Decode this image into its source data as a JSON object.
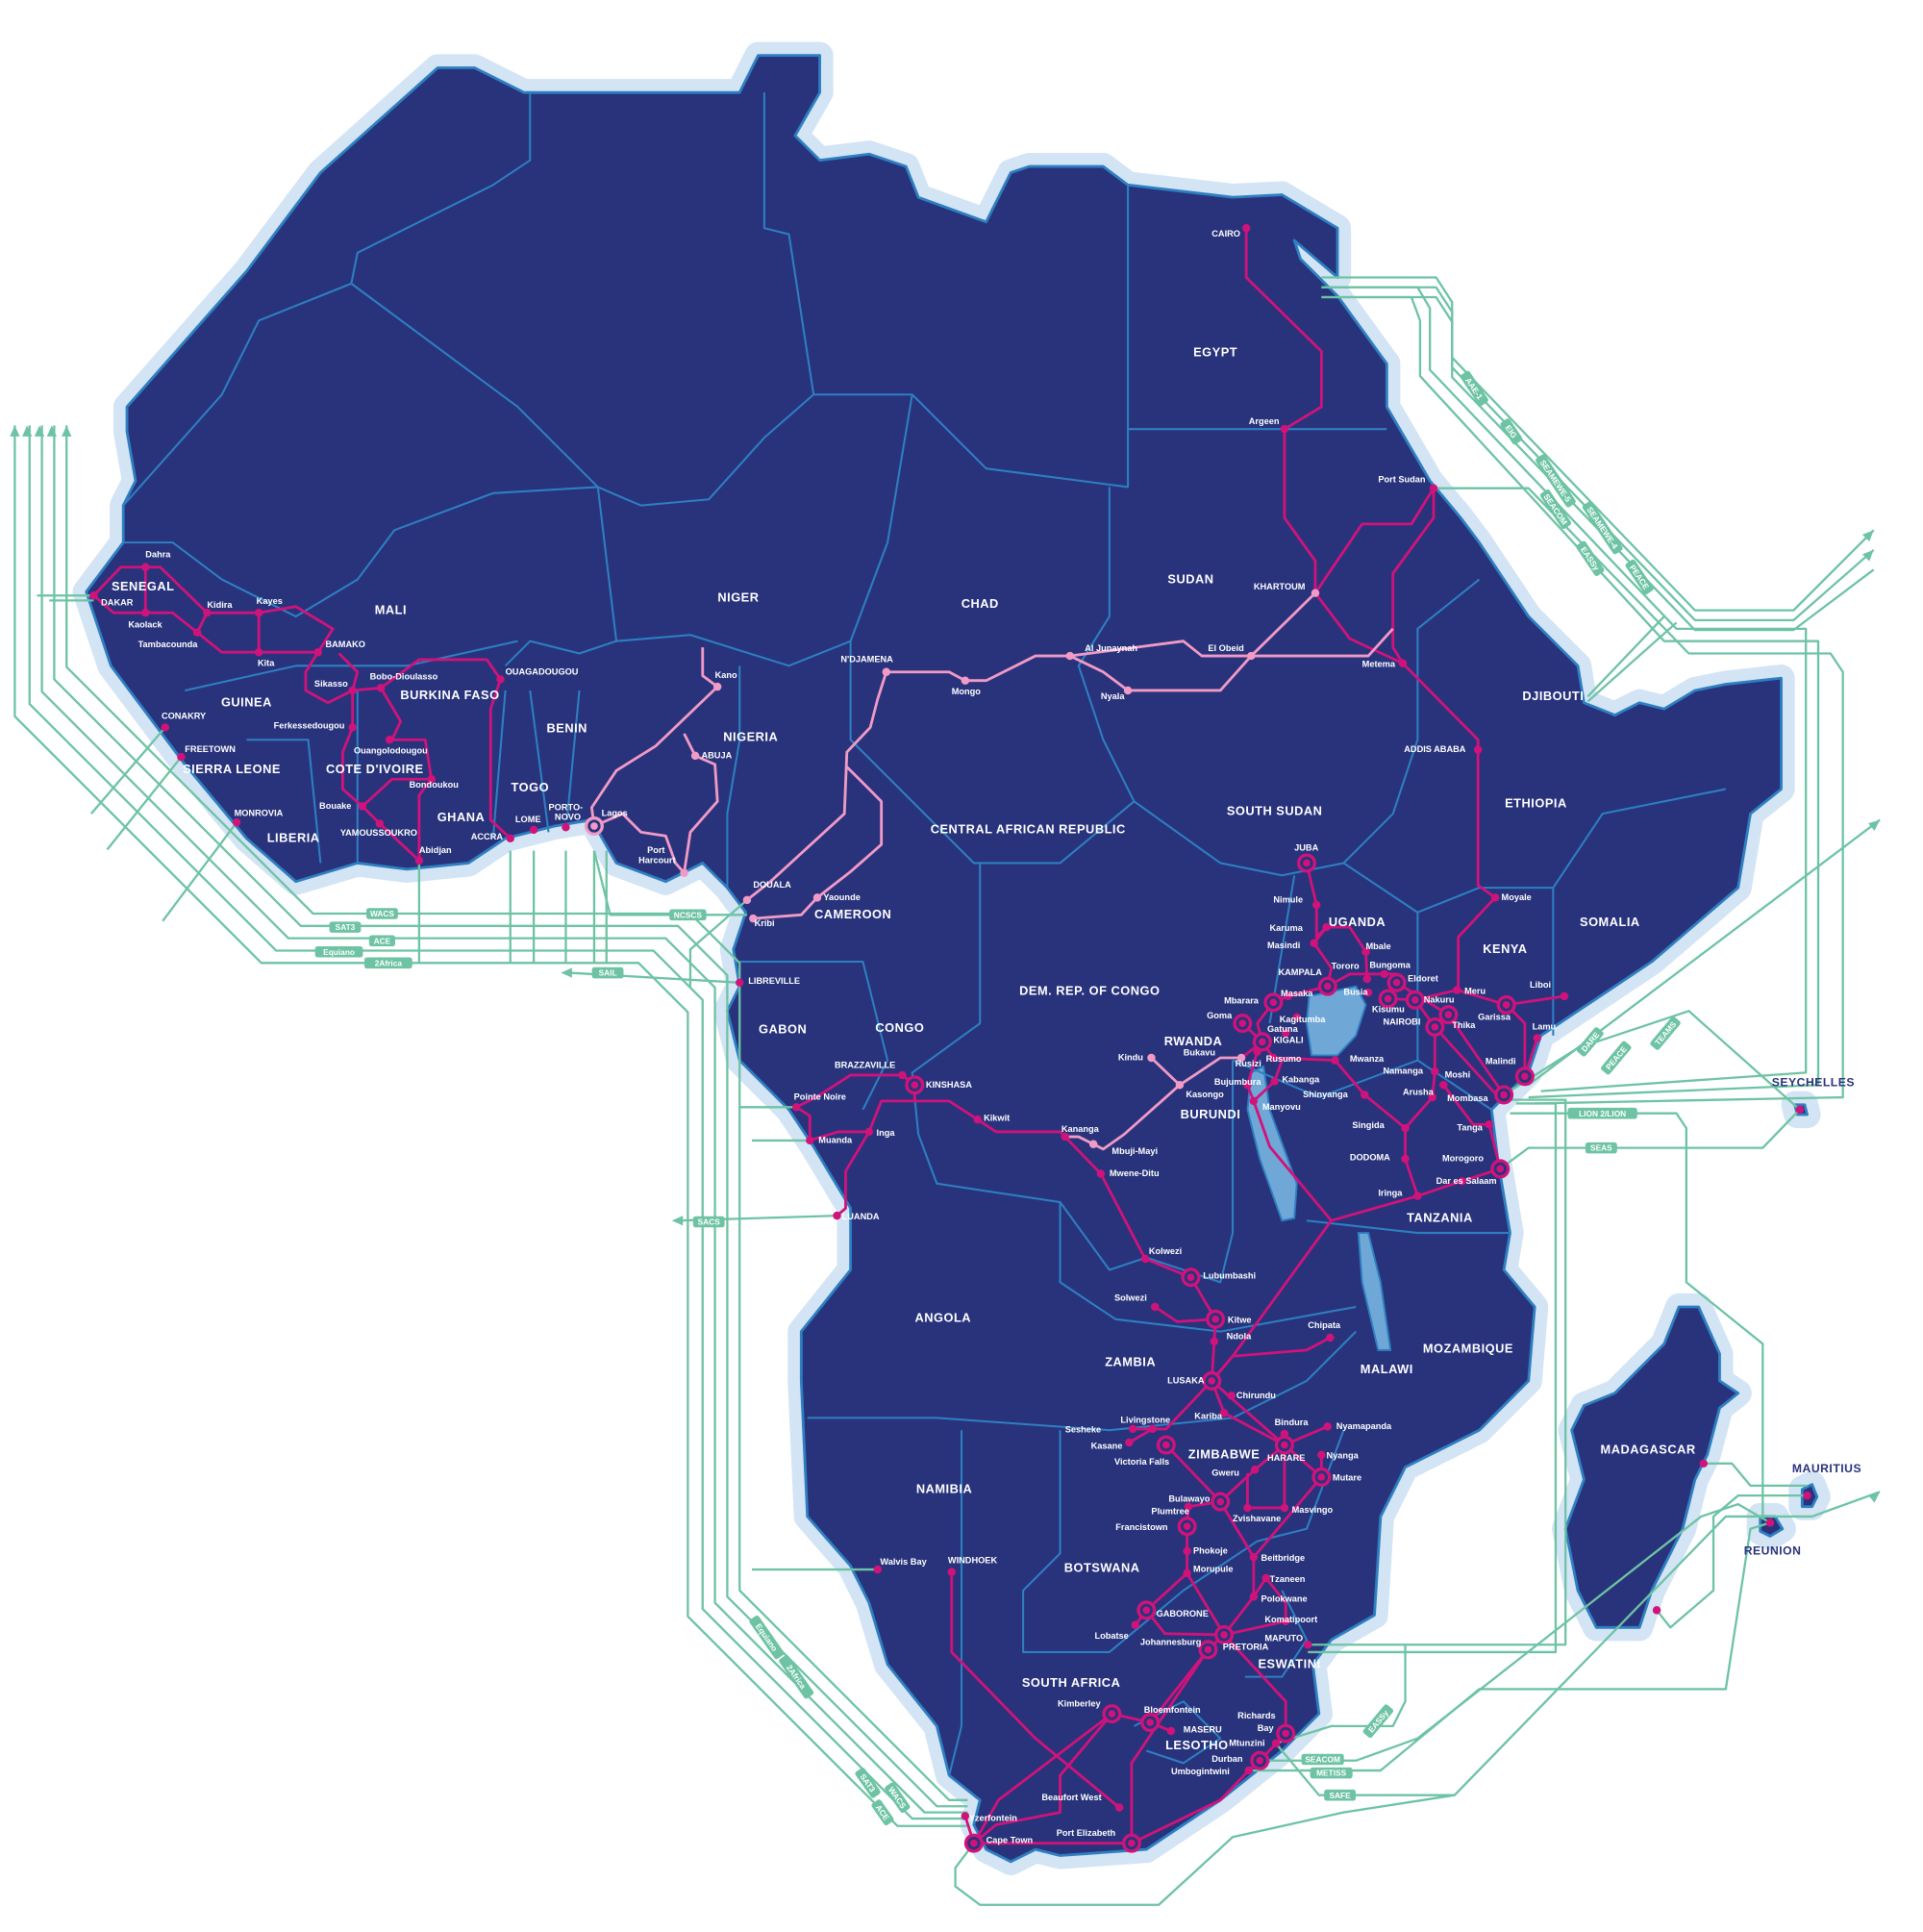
{
  "colors": {
    "land": "#28337c",
    "coast_halo": "#d3e4f5",
    "border": "#2e7fc1",
    "terrestrial_network": "#d0137a",
    "partner_network": "#f29ac6",
    "subsea_cable": "#6ec3a4",
    "lake": "#6fa8d6"
  },
  "countries": [
    "SENEGAL",
    "MALI",
    "NIGER",
    "CHAD",
    "EGYPT",
    "SUDAN",
    "GUINEA",
    "BURKINA FASO",
    "BENIN",
    "NIGERIA",
    "SIERRA LEONE",
    "COTE D'IVOIRE",
    "TOGO",
    "GHANA",
    "LIBERIA",
    "CENTRAL AFRICAN REPUBLIC",
    "SOUTH SUDAN",
    "ETHIOPIA",
    "DJIBOUTI",
    "CAMEROON",
    "UGANDA",
    "KENYA",
    "SOMALIA",
    "DEM. REP. OF CONGO",
    "GABON",
    "CONGO",
    "RWANDA",
    "BURUNDI",
    "TANZANIA",
    "ANGOLA",
    "ZAMBIA",
    "MALAWI",
    "MOZAMBIQUE",
    "ZIMBABWE",
    "NAMIBIA",
    "BOTSWANA",
    "SOUTH AFRICA",
    "LESOTHO",
    "ESWATINI",
    "MADAGASCAR"
  ],
  "islands": [
    "SEYCHELLES",
    "MAURITIUS",
    "REUNION"
  ],
  "cities": [
    "Dahra",
    "DAKAR",
    "Kaolack",
    "Tambacounda",
    "Kidira",
    "Kayes",
    "Kita",
    "BAMAKO",
    "Sikasso",
    "Bobo-Dioulasso",
    "OUAGADOUGOU",
    "Ferkessedougou",
    "Ouangolodougou",
    "Bondoukou",
    "Bouake",
    "YAMOUSSOUKRO",
    "Abidjan",
    "CONAKRY",
    "FREETOWN",
    "MONROVIA",
    "ACCRA",
    "LOME",
    "PORTO-",
    "NOVO",
    "Lagos",
    "Port",
    "Harcourt",
    "Kano",
    "ABUJA",
    "DOUALA",
    "Kribi",
    "Yaounde",
    "N'DJAMENA",
    "Mongo",
    "Al Junaynah",
    "Nyala",
    "El Obeid",
    "KHARTOUM",
    "Metema",
    "Port Sudan",
    "Argeen",
    "CAIRO",
    "ADDIS ABABA",
    "Moyale",
    "JUBA",
    "Nimule",
    "Karuma",
    "Masindi",
    "KAMPALA",
    "Mbale",
    "Tororo",
    "Bungoma",
    "Eldoret",
    "Busia",
    "Kisumu",
    "Masaka",
    "Mbarara",
    "Goma",
    "Kagitumba",
    "Gatuna",
    "KIGALI",
    "Bukavu",
    "Rusizi",
    "Rusumo",
    "Bujumbura",
    "Kabanga",
    "Manyovu",
    "Mwanza",
    "Namanga",
    "Moshi",
    "Arusha",
    "Shinyanga",
    "Singida",
    "DODOMA",
    "Iringa",
    "Morogoro",
    "Dar es Salaam",
    "Tanga",
    "Mombasa",
    "Malindi",
    "Lamu",
    "Liboi",
    "Garissa",
    "Meru",
    "Nakuru",
    "Thika",
    "NAIROBI",
    "Kindu",
    "Kasongo",
    "Mbuji-Mayi",
    "Kananga",
    "Mwene-Ditu",
    "Kikwit",
    "KINSHASA",
    "BRAZZAVILLE",
    "Pointe Noire",
    "Muanda",
    "Inga",
    "LUANDA",
    "LIBREVILLE",
    "Kolwezi",
    "Lubumbashi",
    "Solwezi",
    "Kitwe",
    "Ndola",
    "LUSAKA",
    "Chirundu",
    "Kariba",
    "Chipata",
    "Livingstone",
    "Sesheke",
    "Kasane",
    "Victoria Falls",
    "Bindura",
    "Nyamapanda",
    "HARARE",
    "Nyanga",
    "Mutare",
    "Gweru",
    "Bulawayo",
    "Plumtree",
    "Zvishavane",
    "Masvingo",
    "Francistown",
    "Phokoje",
    "Morupule",
    "Beitbridge",
    "Tzaneen",
    "Polokwane",
    "Komatipoort",
    "MAPUTO",
    "GABORONE",
    "Lobatse",
    "Johannesburg",
    "PRETORIA",
    "Kimberley",
    "Bloemfontein",
    "MASERU",
    "Richards",
    "Bay",
    "Mtunzini",
    "Durban",
    "Umbogintwini",
    "Beaufort West",
    "Yzerfontein",
    "Cape Town",
    "Port Elizabeth",
    "WINDHOEK",
    "Walvis Bay"
  ],
  "cables": [
    "WACS",
    "SAT3",
    "ACE",
    "Equiano",
    "2Africa",
    "SAIL",
    "NCSCS",
    "SACS",
    "AAE-1",
    "EIG",
    "SEAMEWE-5",
    "SEAMEWE-4",
    "SEACOM",
    "EASSy",
    "PEACE",
    "DARE",
    "PEACE",
    "TEAMS",
    "LION 2/LION",
    "SEAS",
    "EASSy",
    "SEACOM",
    "METISS",
    "SAFE",
    "Equiano",
    "2Africa",
    "SAT3",
    "WACS",
    "ACE"
  ]
}
